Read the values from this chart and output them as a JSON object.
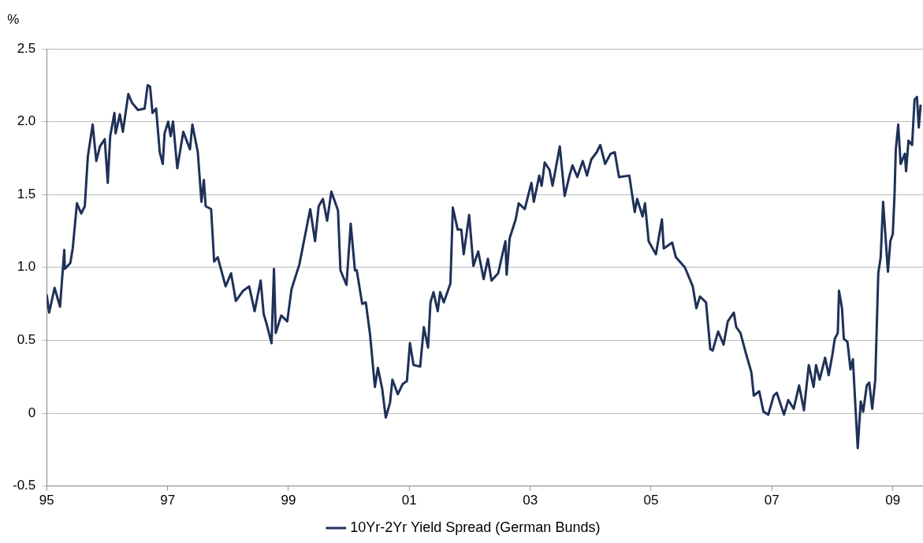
{
  "chart_data": {
    "type": "line",
    "ylabel": "%",
    "xlim": [
      1995,
      2009.5
    ],
    "ylim": [
      -0.5,
      2.5
    ],
    "xticks": [
      {
        "value": 1995,
        "label": "95"
      },
      {
        "value": 1997,
        "label": "97"
      },
      {
        "value": 1999,
        "label": "99"
      },
      {
        "value": 2001,
        "label": "01"
      },
      {
        "value": 2003,
        "label": "03"
      },
      {
        "value": 2005,
        "label": "05"
      },
      {
        "value": 2007,
        "label": "07"
      },
      {
        "value": 2009,
        "label": "09"
      }
    ],
    "yticks": [
      {
        "value": -0.5,
        "label": "-0.5"
      },
      {
        "value": 0,
        "label": "0"
      },
      {
        "value": 0.5,
        "label": "0.5"
      },
      {
        "value": 1,
        "label": "1.0"
      },
      {
        "value": 1.5,
        "label": "1.5"
      },
      {
        "value": 2,
        "label": "2.0"
      },
      {
        "value": 2.5,
        "label": "2.5"
      }
    ],
    "grid": "y",
    "legend": "bottom",
    "marker": "none",
    "line_style": "solid",
    "x": [
      1995,
      1995.04,
      1995.13,
      1995.22,
      1995.29,
      1995.3,
      1995.39,
      1995.43,
      1995.5,
      1995.57,
      1995.63,
      1995.68,
      1995.76,
      1995.82,
      1995.88,
      1995.96,
      1996.01,
      1996.05,
      1996.12,
      1996.14,
      1996.21,
      1996.26,
      1996.35,
      1996.41,
      1996.51,
      1996.62,
      1996.67,
      1996.71,
      1996.75,
      1996.81,
      1996.87,
      1996.92,
      1996.95,
      1997.01,
      1997.05,
      1997.09,
      1997.16,
      1997.26,
      1997.37,
      1997.41,
      1997.5,
      1997.56,
      1997.6,
      1997.63,
      1997.72,
      1997.77,
      1997.83,
      1997.96,
      1998.05,
      1998.13,
      1998.25,
      1998.35,
      1998.44,
      1998.54,
      1998.59,
      1998.64,
      1998.72,
      1998.76,
      1998.79,
      1998.88,
      1998.98,
      1999.05,
      1999.18,
      1999.36,
      1999.44,
      1999.5,
      1999.57,
      1999.64,
      1999.71,
      1999.82,
      1999.86,
      1999.96,
      2000.03,
      2000.1,
      2000.13,
      2000.22,
      2000.28,
      2000.35,
      2000.43,
      2000.48,
      2000.55,
      2000.61,
      2000.68,
      2000.72,
      2000.81,
      2000.89,
      2000.96,
      2001.01,
      2001.07,
      2001.18,
      2001.24,
      2001.31,
      2001.35,
      2001.4,
      2001.47,
      2001.51,
      2001.57,
      2001.68,
      2001.72,
      2001.8,
      2001.86,
      2001.9,
      2001.99,
      2002.06,
      2002.14,
      2002.23,
      2002.3,
      2002.36,
      2002.47,
      2002.59,
      2002.61,
      2002.66,
      2002.76,
      2002.81,
      2002.91,
      2003.02,
      2003.06,
      2003.15,
      2003.19,
      2003.24,
      2003.32,
      2003.37,
      2003.49,
      2003.57,
      2003.65,
      2003.7,
      2003.78,
      2003.87,
      2003.94,
      2004.01,
      2004.1,
      2004.16,
      2004.24,
      2004.33,
      2004.4,
      2004.47,
      2004.64,
      2004.73,
      2004.77,
      2004.86,
      2004.9,
      2004.96,
      2005.08,
      2005.18,
      2005.21,
      2005.35,
      2005.41,
      2005.56,
      2005.69,
      2005.75,
      2005.81,
      2005.91,
      2005.98,
      2006.02,
      2006.11,
      2006.2,
      2006.27,
      2006.37,
      2006.41,
      2006.48,
      2006.57,
      2006.66,
      2006.7,
      2006.79,
      2006.86,
      2006.94,
      2007.03,
      2007.08,
      2007.2,
      2007.27,
      2007.36,
      2007.45,
      2007.53,
      2007.61,
      2007.69,
      2007.73,
      2007.79,
      2007.88,
      2007.94,
      2008,
      2008.04,
      2008.09,
      2008.11,
      2008.16,
      2008.19,
      2008.25,
      2008.3,
      2008.34,
      2008.38,
      2008.42,
      2008.47,
      2008.51,
      2008.57,
      2008.61,
      2008.66,
      2008.71,
      2008.76,
      2008.8,
      2008.84,
      2008.92,
      2008.96,
      2009,
      2009.03,
      2009.05,
      2009.09,
      2009.13,
      2009.2,
      2009.22,
      2009.26,
      2009.32,
      2009.36,
      2009.4,
      2009.43,
      2009.46
    ],
    "series": [
      {
        "name": "10Yr-2Yr Yield Spread (German Bunds)",
        "color": "#1f3158",
        "values": [
          0.81,
          0.69,
          0.86,
          0.73,
          1.12,
          0.99,
          1.03,
          1.13,
          1.44,
          1.37,
          1.42,
          1.76,
          1.98,
          1.73,
          1.83,
          1.88,
          1.58,
          1.9,
          2.06,
          1.92,
          2.05,
          1.93,
          2.19,
          2.13,
          2.08,
          2.09,
          2.25,
          2.24,
          2.06,
          2.09,
          1.79,
          1.71,
          1.92,
          2.0,
          1.9,
          2.0,
          1.68,
          1.93,
          1.81,
          1.98,
          1.79,
          1.45,
          1.6,
          1.42,
          1.4,
          1.04,
          1.07,
          0.87,
          0.96,
          0.77,
          0.84,
          0.87,
          0.7,
          0.91,
          0.68,
          0.61,
          0.48,
          0.99,
          0.55,
          0.67,
          0.63,
          0.85,
          1.02,
          1.4,
          1.18,
          1.42,
          1.47,
          1.32,
          1.52,
          1.39,
          0.98,
          0.88,
          1.3,
          0.98,
          0.98,
          0.75,
          0.76,
          0.54,
          0.18,
          0.31,
          0.17,
          -0.03,
          0.07,
          0.23,
          0.13,
          0.2,
          0.22,
          0.48,
          0.33,
          0.32,
          0.59,
          0.45,
          0.76,
          0.83,
          0.7,
          0.83,
          0.76,
          0.89,
          1.41,
          1.26,
          1.26,
          1.09,
          1.36,
          1.01,
          1.11,
          0.92,
          1.06,
          0.91,
          0.96,
          1.18,
          0.95,
          1.2,
          1.33,
          1.44,
          1.4,
          1.58,
          1.45,
          1.63,
          1.56,
          1.72,
          1.67,
          1.56,
          1.83,
          1.49,
          1.63,
          1.7,
          1.62,
          1.73,
          1.63,
          1.74,
          1.79,
          1.84,
          1.71,
          1.78,
          1.79,
          1.62,
          1.63,
          1.38,
          1.47,
          1.35,
          1.44,
          1.18,
          1.09,
          1.33,
          1.13,
          1.17,
          1.07,
          1.0,
          0.87,
          0.72,
          0.8,
          0.76,
          0.44,
          0.43,
          0.56,
          0.47,
          0.63,
          0.69,
          0.59,
          0.55,
          0.41,
          0.28,
          0.12,
          0.15,
          0.01,
          -0.01,
          0.12,
          0.14,
          -0.01,
          0.09,
          0.03,
          0.19,
          0.02,
          0.33,
          0.18,
          0.33,
          0.23,
          0.38,
          0.26,
          0.4,
          0.51,
          0.55,
          0.84,
          0.72,
          0.51,
          0.49,
          0.3,
          0.37,
          0.06,
          -0.24,
          0.08,
          0.01,
          0.19,
          0.21,
          0.03,
          0.23,
          0.96,
          1.07,
          1.45,
          0.97,
          1.18,
          1.23,
          1.51,
          1.81,
          1.98,
          1.71,
          1.78,
          1.66,
          1.87,
          1.84,
          2.15,
          2.17,
          1.96,
          2.11
        ]
      }
    ]
  }
}
